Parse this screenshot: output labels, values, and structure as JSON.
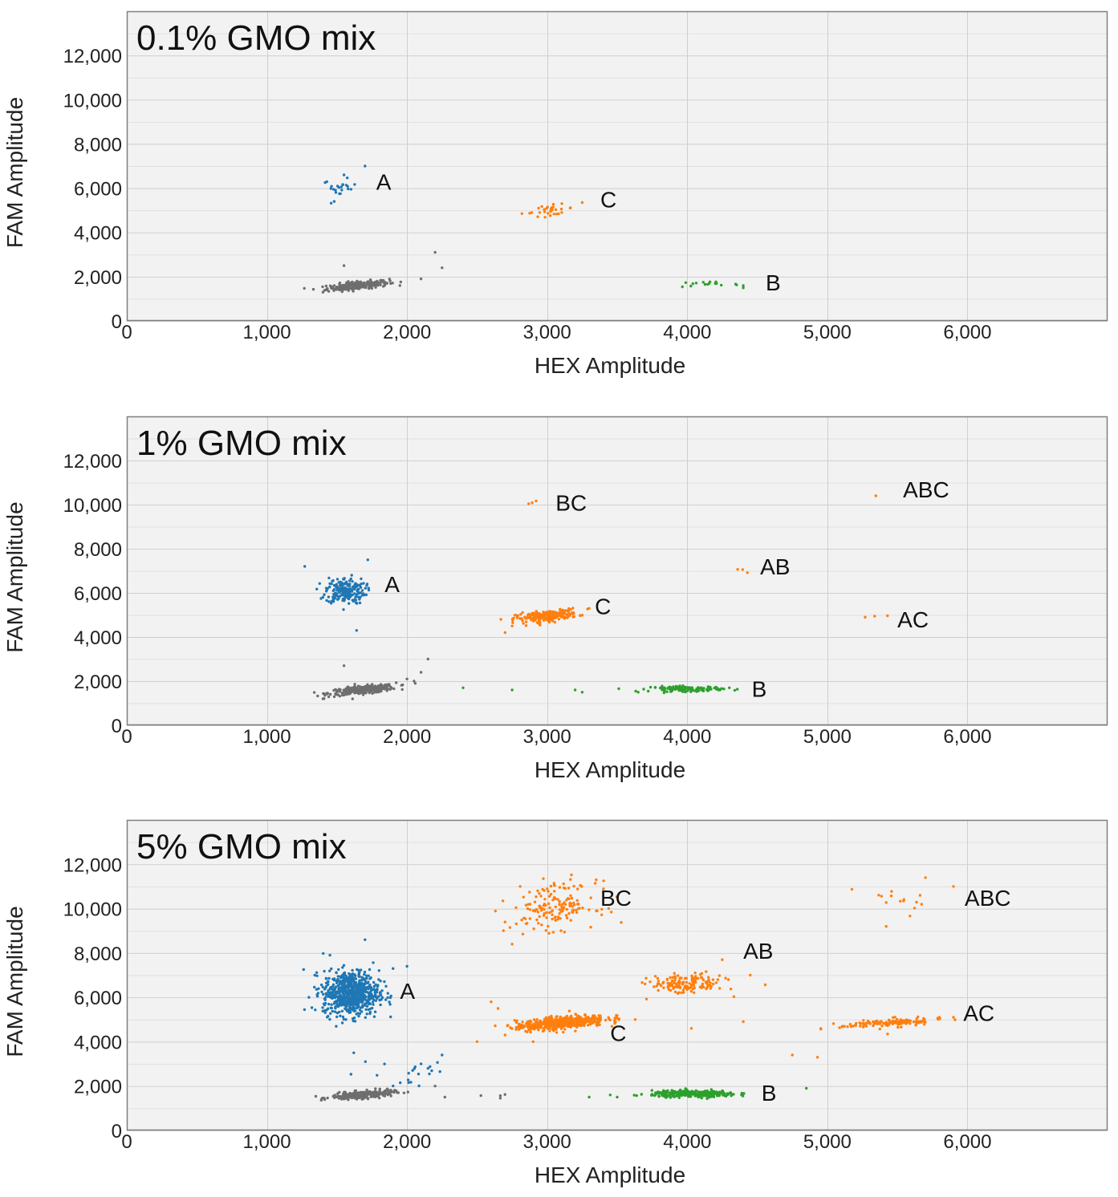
{
  "chart_data": [
    {
      "type": "scatter",
      "title": "0.1% GMO mix",
      "xlabel": "HEX Amplitude",
      "ylabel": "FAM Amplitude",
      "xlim": [
        0,
        7000
      ],
      "ylim": [
        0,
        14000
      ],
      "xticks": [
        0,
        1000,
        2000,
        3000,
        4000,
        5000,
        6000
      ],
      "xtick_labels": [
        "0",
        "1,000",
        "2,000",
        "3,000",
        "4,000",
        "5,000",
        "6,000"
      ],
      "yticks": [
        0,
        2000,
        4000,
        6000,
        8000,
        10000,
        12000
      ],
      "ytick_labels": [
        "0",
        "2,000",
        "4,000",
        "6,000",
        "8,000",
        "10,000",
        "12,000"
      ],
      "grid": true,
      "clusters": [
        {
          "name": "negative",
          "color": "#6e6e6e",
          "cx": 1650,
          "cy": 1600,
          "sx": 110,
          "sy": 90,
          "n": 260,
          "slope": 0.6,
          "outliers": [
            [
              2200,
              3100
            ],
            [
              2250,
              2400
            ],
            [
              1550,
              2500
            ],
            [
              2100,
              1900
            ],
            [
              1400,
              1300
            ]
          ]
        },
        {
          "name": "A",
          "color": "#1f77b4",
          "cx": 1520,
          "cy": 6000,
          "sx": 60,
          "sy": 200,
          "n": 22,
          "slope": 0,
          "outliers": [
            [
              1700,
              7000
            ],
            [
              1550,
              6600
            ],
            [
              1480,
              5400
            ]
          ]
        },
        {
          "name": "C",
          "color": "#ff7f0e",
          "cx": 3020,
          "cy": 5000,
          "sx": 90,
          "sy": 110,
          "n": 28,
          "slope": 0.7,
          "outliers": [
            [
              2820,
              4850
            ],
            [
              3250,
              5350
            ]
          ]
        },
        {
          "name": "B",
          "color": "#2ca02c",
          "cx": 4130,
          "cy": 1650,
          "sx": 120,
          "sy": 60,
          "n": 18,
          "slope": 0,
          "outliers": [
            [
              4400,
              1600
            ]
          ]
        }
      ],
      "annotations": [
        {
          "text": "A",
          "x": 1780,
          "y": 6300
        },
        {
          "text": "C",
          "x": 3380,
          "y": 5500
        },
        {
          "text": "B",
          "x": 4560,
          "y": 1750
        }
      ]
    },
    {
      "type": "scatter",
      "title": "1% GMO mix",
      "xlabel": "HEX Amplitude",
      "ylabel": "FAM Amplitude",
      "xlim": [
        0,
        7000
      ],
      "ylim": [
        0,
        14000
      ],
      "xticks": [
        0,
        1000,
        2000,
        3000,
        4000,
        5000,
        6000
      ],
      "xtick_labels": [
        "0",
        "1,000",
        "2,000",
        "3,000",
        "4,000",
        "5,000",
        "6,000"
      ],
      "yticks": [
        0,
        2000,
        4000,
        6000,
        8000,
        10000,
        12000
      ],
      "ytick_labels": [
        "0",
        "2,000",
        "4,000",
        "6,000",
        "8,000",
        "10,000",
        "12,000"
      ],
      "grid": true,
      "clusters": [
        {
          "name": "negative",
          "color": "#6e6e6e",
          "cx": 1680,
          "cy": 1600,
          "sx": 120,
          "sy": 90,
          "n": 300,
          "slope": 0.6,
          "outliers": [
            [
              2150,
              3000
            ],
            [
              2100,
              2400
            ],
            [
              1550,
              2700
            ],
            [
              2000,
              2100
            ],
            [
              2050,
              2000
            ],
            [
              1400,
              1200
            ]
          ]
        },
        {
          "name": "A",
          "color": "#1f77b4",
          "cx": 1560,
          "cy": 6100,
          "sx": 70,
          "sy": 300,
          "n": 200,
          "slope": 0,
          "outliers": [
            [
              1270,
              7200
            ],
            [
              1720,
              7500
            ],
            [
              1640,
              4300
            ],
            [
              1400,
              5800
            ]
          ]
        },
        {
          "name": "C",
          "color": "#ff7f0e",
          "cx": 3000,
          "cy": 4950,
          "sx": 110,
          "sy": 120,
          "n": 230,
          "slope": 0.6,
          "outliers": [
            [
              2700,
              4200
            ],
            [
              3300,
              5300
            ],
            [
              2750,
              4500
            ]
          ]
        },
        {
          "name": "B",
          "color": "#2ca02c",
          "cx": 4000,
          "cy": 1650,
          "sx": 130,
          "sy": 60,
          "n": 120,
          "slope": 0,
          "outliers": [
            [
              2400,
              1700
            ],
            [
              2750,
              1600
            ],
            [
              3200,
              1600
            ],
            [
              3250,
              1500
            ],
            [
              3650,
              1500
            ],
            [
              4300,
              1700
            ]
          ]
        },
        {
          "name": "BC",
          "color": "#ff7f0e",
          "cx": 2900,
          "cy": 10100,
          "sx": 30,
          "sy": 60,
          "n": 3,
          "slope": 0,
          "outliers": []
        },
        {
          "name": "AB",
          "color": "#ff7f0e",
          "cx": 4350,
          "cy": 7000,
          "sx": 40,
          "sy": 60,
          "n": 3,
          "slope": 0,
          "outliers": []
        },
        {
          "name": "AC",
          "color": "#ff7f0e",
          "cx": 5350,
          "cy": 4950,
          "sx": 40,
          "sy": 40,
          "n": 3,
          "slope": 0,
          "outliers": []
        },
        {
          "name": "ABC",
          "color": "#ff7f0e",
          "cx": 5350,
          "cy": 10400,
          "sx": 10,
          "sy": 30,
          "n": 1,
          "slope": 0,
          "outliers": []
        }
      ],
      "annotations": [
        {
          "text": "BC",
          "x": 3060,
          "y": 10100
        },
        {
          "text": "A",
          "x": 1840,
          "y": 6400
        },
        {
          "text": "C",
          "x": 3340,
          "y": 5400
        },
        {
          "text": "AB",
          "x": 4520,
          "y": 7200
        },
        {
          "text": "AC",
          "x": 5500,
          "y": 4800
        },
        {
          "text": "ABC",
          "x": 5540,
          "y": 10700
        },
        {
          "text": "B",
          "x": 4460,
          "y": 1650
        }
      ]
    },
    {
      "type": "scatter",
      "title": "5% GMO mix",
      "xlabel": "HEX Amplitude",
      "ylabel": "FAM Amplitude",
      "xlim": [
        0,
        7000
      ],
      "ylim": [
        0,
        14000
      ],
      "xticks": [
        0,
        1000,
        2000,
        3000,
        4000,
        5000,
        6000
      ],
      "xtick_labels": [
        "0",
        "1,000",
        "2,000",
        "3,000",
        "4,000",
        "5,000",
        "6,000"
      ],
      "yticks": [
        0,
        2000,
        4000,
        6000,
        8000,
        10000,
        12000
      ],
      "ytick_labels": [
        "0",
        "2,000",
        "4,000",
        "6,000",
        "8,000",
        "10,000",
        "12,000"
      ],
      "grid": true,
      "clusters": [
        {
          "name": "negative",
          "color": "#6e6e6e",
          "cx": 1680,
          "cy": 1600,
          "sx": 110,
          "sy": 80,
          "n": 260,
          "slope": 0.5,
          "outliers": [
            [
              2200,
              2000
            ],
            [
              2270,
              1500
            ]
          ]
        },
        {
          "name": "A",
          "color": "#1f77b4",
          "cx": 1600,
          "cy": 6200,
          "sx": 100,
          "sy": 500,
          "n": 700,
          "slope": 0,
          "outliers": [
            [
              1300,
              6000
            ],
            [
              1700,
              8600
            ],
            [
              1620,
              3500
            ],
            [
              1450,
              7900
            ],
            [
              1900,
              7300
            ],
            [
              2000,
              7400
            ],
            [
              1850,
              6500
            ]
          ]
        },
        {
          "name": "A-rain",
          "color": "#1f77b4",
          "cx": 2000,
          "cy": 2600,
          "sx": 200,
          "sy": 450,
          "n": 20,
          "slope": 0.3,
          "outliers": [
            [
              2250,
              3400
            ],
            [
              2100,
              3000
            ],
            [
              2150,
              2800
            ]
          ]
        },
        {
          "name": "C",
          "color": "#ff7f0e",
          "cx": 3100,
          "cy": 4850,
          "sx": 160,
          "sy": 140,
          "n": 500,
          "slope": 0.55,
          "outliers": [
            [
              2600,
              5800
            ],
            [
              2500,
              4000
            ],
            [
              2700,
              4300
            ],
            [
              2900,
              4000
            ],
            [
              2650,
              5500
            ]
          ]
        },
        {
          "name": "B",
          "color": "#2ca02c",
          "cx": 4050,
          "cy": 1650,
          "sx": 150,
          "sy": 70,
          "n": 350,
          "slope": 0,
          "outliers": [
            [
              3300,
              1500
            ],
            [
              3450,
              1600
            ],
            [
              3500,
              1500
            ],
            [
              4850,
              1900
            ]
          ]
        },
        {
          "name": "neg-rain",
          "color": "#6e6e6e",
          "cx": 2700,
          "cy": 1550,
          "sx": 90,
          "sy": 60,
          "n": 4,
          "slope": 0,
          "outliers": []
        },
        {
          "name": "BC",
          "color": "#ff7f0e",
          "cx": 3050,
          "cy": 10100,
          "sx": 150,
          "sy": 500,
          "n": 160,
          "slope": 0.3,
          "outliers": [
            [
              2750,
              8400
            ],
            [
              2700,
              9400
            ],
            [
              3350,
              11300
            ]
          ]
        },
        {
          "name": "AB",
          "color": "#ff7f0e",
          "cx": 4000,
          "cy": 6600,
          "sx": 130,
          "sy": 220,
          "n": 150,
          "slope": 0.3,
          "outliers": [
            [
              4450,
              7000
            ],
            [
              4250,
              7700
            ],
            [
              4400,
              4900
            ],
            [
              4030,
              4600
            ],
            [
              4750,
              3400
            ],
            [
              4930,
              3300
            ]
          ]
        },
        {
          "name": "AC",
          "color": "#ff7f0e",
          "cx": 5450,
          "cy": 4850,
          "sx": 180,
          "sy": 90,
          "n": 130,
          "slope": 0.35,
          "outliers": [
            [
              5900,
              5100
            ],
            [
              5800,
              5100
            ],
            [
              5430,
              4350
            ]
          ]
        },
        {
          "name": "ABC",
          "color": "#ff7f0e",
          "cx": 5450,
          "cy": 10400,
          "sx": 130,
          "sy": 350,
          "n": 14,
          "slope": 0,
          "outliers": [
            [
              5700,
              11400
            ],
            [
              5900,
              11000
            ],
            [
              5420,
              9200
            ]
          ]
        }
      ],
      "annotations": [
        {
          "text": "BC",
          "x": 3380,
          "y": 10500
        },
        {
          "text": "ABC",
          "x": 5980,
          "y": 10500
        },
        {
          "text": "AB",
          "x": 4400,
          "y": 8100
        },
        {
          "text": "A",
          "x": 1950,
          "y": 6300
        },
        {
          "text": "AC",
          "x": 5970,
          "y": 5300
        },
        {
          "text": "C",
          "x": 3450,
          "y": 4400
        },
        {
          "text": "B",
          "x": 4530,
          "y": 1700
        }
      ]
    }
  ]
}
